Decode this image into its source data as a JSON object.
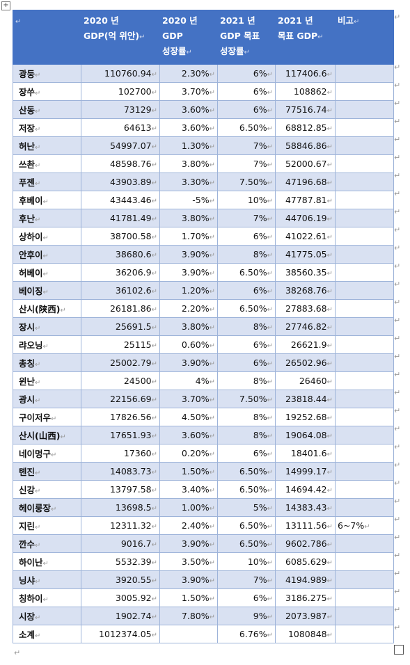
{
  "headers": {
    "region": "",
    "gdp2020": [
      "2020 년",
      "GDP(억 위안)"
    ],
    "growth2020": [
      "2020 년",
      "GDP",
      "성장률"
    ],
    "target_growth2021": [
      "2021 년",
      "GDP 목표",
      "성장률"
    ],
    "target_gdp2021": [
      "2021 년",
      "목표 GDP"
    ],
    "note": "비고"
  },
  "rows": [
    {
      "region": "광둥",
      "gdp2020": "110760.94",
      "growth2020": "2.30%",
      "target_growth2021": "6%",
      "target_gdp2021": "117406.6",
      "note": ""
    },
    {
      "region": "장쑤",
      "gdp2020": "102700",
      "growth2020": "3.70%",
      "target_growth2021": "6%",
      "target_gdp2021": "108862",
      "note": ""
    },
    {
      "region": "산동",
      "gdp2020": "73129",
      "growth2020": "3.60%",
      "target_growth2021": "6%",
      "target_gdp2021": "77516.74",
      "note": ""
    },
    {
      "region": "저장",
      "gdp2020": "64613",
      "growth2020": "3.60%",
      "target_growth2021": "6.50%",
      "target_gdp2021": "68812.85",
      "note": ""
    },
    {
      "region": "허난",
      "gdp2020": "54997.07",
      "growth2020": "1.30%",
      "target_growth2021": "7%",
      "target_gdp2021": "58846.86",
      "note": ""
    },
    {
      "region": "쓰촨",
      "gdp2020": "48598.76",
      "growth2020": "3.80%",
      "target_growth2021": "7%",
      "target_gdp2021": "52000.67",
      "note": ""
    },
    {
      "region": "푸젠",
      "gdp2020": "43903.89",
      "growth2020": "3.30%",
      "target_growth2021": "7.50%",
      "target_gdp2021": "47196.68",
      "note": ""
    },
    {
      "region": "후베이",
      "gdp2020": "43443.46",
      "growth2020": "-5%",
      "target_growth2021": "10%",
      "target_gdp2021": "47787.81",
      "note": ""
    },
    {
      "region": "후난",
      "gdp2020": "41781.49",
      "growth2020": "3.80%",
      "target_growth2021": "7%",
      "target_gdp2021": "44706.19",
      "note": ""
    },
    {
      "region": "상하이",
      "gdp2020": "38700.58",
      "growth2020": "1.70%",
      "target_growth2021": "6%",
      "target_gdp2021": "41022.61",
      "note": ""
    },
    {
      "region": "안후이",
      "gdp2020": "38680.6",
      "growth2020": "3.90%",
      "target_growth2021": "8%",
      "target_gdp2021": "41775.05",
      "note": ""
    },
    {
      "region": "허베이",
      "gdp2020": "36206.9",
      "growth2020": "3.90%",
      "target_growth2021": "6.50%",
      "target_gdp2021": "38560.35",
      "note": ""
    },
    {
      "region": "베이징",
      "gdp2020": "36102.6",
      "growth2020": "1.20%",
      "target_growth2021": "6%",
      "target_gdp2021": "38268.76",
      "note": ""
    },
    {
      "region": "산시(陕西)",
      "gdp2020": "26181.86",
      "growth2020": "2.20%",
      "target_growth2021": "6.50%",
      "target_gdp2021": "27883.68",
      "note": ""
    },
    {
      "region": "장시",
      "gdp2020": "25691.5",
      "growth2020": "3.80%",
      "target_growth2021": "8%",
      "target_gdp2021": "27746.82",
      "note": ""
    },
    {
      "region": "랴오닝",
      "gdp2020": "25115",
      "growth2020": "0.60%",
      "target_growth2021": "6%",
      "target_gdp2021": "26621.9",
      "note": ""
    },
    {
      "region": "총칭",
      "gdp2020": "25002.79",
      "growth2020": "3.90%",
      "target_growth2021": "6%",
      "target_gdp2021": "26502.96",
      "note": ""
    },
    {
      "region": "윈난",
      "gdp2020": "24500",
      "growth2020": "4%",
      "target_growth2021": "8%",
      "target_gdp2021": "26460",
      "note": ""
    },
    {
      "region": "광시",
      "gdp2020": "22156.69",
      "growth2020": "3.70%",
      "target_growth2021": "7.50%",
      "target_gdp2021": "23818.44",
      "note": ""
    },
    {
      "region": "구이저우",
      "gdp2020": "17826.56",
      "growth2020": "4.50%",
      "target_growth2021": "8%",
      "target_gdp2021": "19252.68",
      "note": ""
    },
    {
      "region": "산시(山西)",
      "gdp2020": "17651.93",
      "growth2020": "3.60%",
      "target_growth2021": "8%",
      "target_gdp2021": "19064.08",
      "note": ""
    },
    {
      "region": "네이멍구",
      "gdp2020": "17360",
      "growth2020": "0.20%",
      "target_growth2021": "6%",
      "target_gdp2021": "18401.6",
      "note": ""
    },
    {
      "region": "톈진",
      "gdp2020": "14083.73",
      "growth2020": "1.50%",
      "target_growth2021": "6.50%",
      "target_gdp2021": "14999.17",
      "note": ""
    },
    {
      "region": "신강",
      "gdp2020": "13797.58",
      "growth2020": "3.40%",
      "target_growth2021": "6.50%",
      "target_gdp2021": "14694.42",
      "note": ""
    },
    {
      "region": "헤이룽장",
      "gdp2020": "13698.5",
      "growth2020": "1.00%",
      "target_growth2021": "5%",
      "target_gdp2021": "14383.43",
      "note": ""
    },
    {
      "region": "지린",
      "gdp2020": "12311.32",
      "growth2020": "2.40%",
      "target_growth2021": "6.50%",
      "target_gdp2021": "13111.56",
      "note": "6~7%"
    },
    {
      "region": "깐수",
      "gdp2020": "9016.7",
      "growth2020": "3.90%",
      "target_growth2021": "6.50%",
      "target_gdp2021": "9602.786",
      "note": ""
    },
    {
      "region": "하이난",
      "gdp2020": "5532.39",
      "growth2020": "3.50%",
      "target_growth2021": "10%",
      "target_gdp2021": "6085.629",
      "note": ""
    },
    {
      "region": "닝샤",
      "gdp2020": "3920.55",
      "growth2020": "3.90%",
      "target_growth2021": "7%",
      "target_gdp2021": "4194.989",
      "note": ""
    },
    {
      "region": "칭하이",
      "gdp2020": "3005.92",
      "growth2020": "1.50%",
      "target_growth2021": "6%",
      "target_gdp2021": "3186.275",
      "note": ""
    },
    {
      "region": "시장",
      "gdp2020": "1902.74",
      "growth2020": "7.80%",
      "target_growth2021": "9%",
      "target_gdp2021": "2073.987",
      "note": ""
    },
    {
      "region": "소계",
      "gdp2020": "1012374.05",
      "growth2020": "",
      "target_growth2021": "6.76%",
      "target_gdp2021": "1080848",
      "note": ""
    }
  ]
}
